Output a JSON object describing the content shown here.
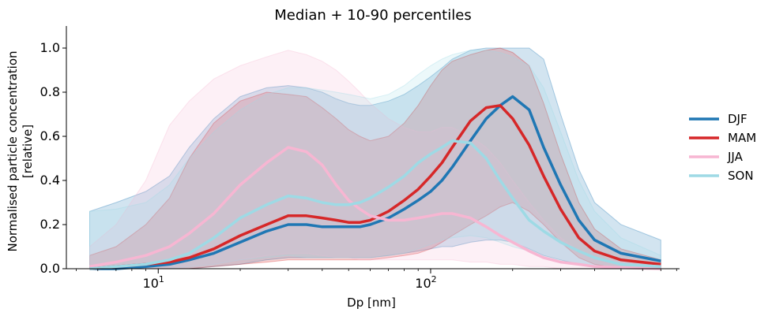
{
  "chart_data": {
    "type": "line",
    "title": "Median + 10-90 percentiles",
    "xlabel": "Dp [nm]",
    "ylabel_line1": "Normalised particle concentration",
    "ylabel_line2": "[relative]",
    "xscale": "log",
    "xlim": [
      4.6,
      820
    ],
    "ylim": [
      0,
      1.1
    ],
    "y_ticks": [
      {
        "value": 0.0,
        "label": "0.0"
      },
      {
        "value": 0.2,
        "label": "0.2"
      },
      {
        "value": 0.4,
        "label": "0.4"
      },
      {
        "value": 0.6,
        "label": "0.6"
      },
      {
        "value": 0.8,
        "label": "0.8"
      },
      {
        "value": 1.0,
        "label": "1.0"
      }
    ],
    "x_major_ticks": [
      {
        "value": 10,
        "base": "10",
        "exp": "1"
      },
      {
        "value": 100,
        "base": "10",
        "exp": "2"
      }
    ],
    "legend_position": "right",
    "series": [
      {
        "name": "DJF",
        "color": "#1f77b4",
        "x": [
          5.6,
          7,
          9,
          11,
          13,
          16,
          20,
          25,
          30,
          35,
          40,
          45,
          50,
          55,
          60,
          70,
          80,
          90,
          100,
          110,
          120,
          140,
          160,
          180,
          200,
          230,
          260,
          300,
          350,
          400,
          500,
          700
        ],
        "median": [
          0.0,
          0.0,
          0.01,
          0.02,
          0.04,
          0.07,
          0.12,
          0.17,
          0.2,
          0.2,
          0.19,
          0.19,
          0.19,
          0.19,
          0.2,
          0.23,
          0.27,
          0.31,
          0.35,
          0.4,
          0.46,
          0.58,
          0.68,
          0.74,
          0.78,
          0.72,
          0.55,
          0.38,
          0.22,
          0.13,
          0.07,
          0.035
        ],
        "p10": [
          0.0,
          0.0,
          0.0,
          0.0,
          0.0,
          0.01,
          0.02,
          0.04,
          0.05,
          0.05,
          0.05,
          0.05,
          0.05,
          0.05,
          0.05,
          0.06,
          0.07,
          0.08,
          0.09,
          0.1,
          0.1,
          0.12,
          0.13,
          0.13,
          0.12,
          0.09,
          0.06,
          0.04,
          0.02,
          0.01,
          0.0,
          0.0
        ],
        "p90": [
          0.26,
          0.3,
          0.35,
          0.42,
          0.55,
          0.68,
          0.78,
          0.82,
          0.83,
          0.82,
          0.8,
          0.77,
          0.75,
          0.74,
          0.74,
          0.76,
          0.79,
          0.83,
          0.87,
          0.91,
          0.95,
          0.99,
          1.0,
          1.0,
          1.0,
          1.0,
          0.95,
          0.7,
          0.45,
          0.3,
          0.2,
          0.13
        ]
      },
      {
        "name": "MAM",
        "color": "#d62728",
        "x": [
          5.6,
          7,
          9,
          11,
          13,
          16,
          20,
          25,
          30,
          35,
          40,
          45,
          50,
          55,
          60,
          70,
          80,
          90,
          100,
          110,
          120,
          140,
          160,
          180,
          200,
          230,
          260,
          300,
          350,
          400,
          500,
          700
        ],
        "median": [
          0.0,
          0.01,
          0.02,
          0.03,
          0.05,
          0.09,
          0.15,
          0.2,
          0.24,
          0.24,
          0.23,
          0.22,
          0.21,
          0.21,
          0.22,
          0.26,
          0.31,
          0.36,
          0.42,
          0.48,
          0.55,
          0.67,
          0.73,
          0.74,
          0.68,
          0.56,
          0.42,
          0.27,
          0.14,
          0.08,
          0.04,
          0.02
        ],
        "p10": [
          0.0,
          0.0,
          0.0,
          0.0,
          0.0,
          0.01,
          0.02,
          0.03,
          0.04,
          0.04,
          0.04,
          0.04,
          0.04,
          0.04,
          0.04,
          0.05,
          0.06,
          0.07,
          0.09,
          0.12,
          0.15,
          0.2,
          0.24,
          0.28,
          0.3,
          0.26,
          0.2,
          0.12,
          0.05,
          0.02,
          0.0,
          0.0
        ],
        "p90": [
          0.06,
          0.1,
          0.2,
          0.32,
          0.5,
          0.66,
          0.76,
          0.8,
          0.79,
          0.78,
          0.73,
          0.68,
          0.63,
          0.6,
          0.58,
          0.6,
          0.66,
          0.74,
          0.83,
          0.9,
          0.94,
          0.97,
          0.99,
          1.0,
          0.98,
          0.92,
          0.75,
          0.52,
          0.3,
          0.18,
          0.09,
          0.04
        ]
      },
      {
        "name": "JJA",
        "color": "#f7b6d2",
        "x": [
          5.6,
          7,
          9,
          11,
          13,
          16,
          20,
          25,
          30,
          35,
          40,
          45,
          50,
          55,
          60,
          70,
          80,
          90,
          100,
          110,
          120,
          140,
          160,
          180,
          200,
          230,
          260,
          300,
          350,
          400,
          500,
          700
        ],
        "median": [
          0.01,
          0.03,
          0.06,
          0.1,
          0.16,
          0.25,
          0.38,
          0.48,
          0.55,
          0.53,
          0.47,
          0.38,
          0.31,
          0.27,
          0.24,
          0.22,
          0.22,
          0.23,
          0.24,
          0.25,
          0.25,
          0.23,
          0.19,
          0.15,
          0.12,
          0.08,
          0.05,
          0.03,
          0.02,
          0.01,
          0.005,
          0.0
        ],
        "p10": [
          0.0,
          0.0,
          0.0,
          0.0,
          0.01,
          0.02,
          0.04,
          0.06,
          0.07,
          0.07,
          0.06,
          0.05,
          0.05,
          0.04,
          0.04,
          0.04,
          0.04,
          0.04,
          0.04,
          0.04,
          0.04,
          0.03,
          0.03,
          0.02,
          0.02,
          0.01,
          0.01,
          0.0,
          0.0,
          0.0,
          0.0,
          0.0
        ],
        "p90": [
          0.1,
          0.2,
          0.4,
          0.65,
          0.76,
          0.86,
          0.92,
          0.96,
          0.99,
          0.97,
          0.94,
          0.9,
          0.85,
          0.8,
          0.75,
          0.68,
          0.64,
          0.62,
          0.62,
          0.64,
          0.64,
          0.6,
          0.55,
          0.48,
          0.4,
          0.3,
          0.22,
          0.14,
          0.08,
          0.05,
          0.03,
          0.02
        ]
      },
      {
        "name": "SON",
        "color": "#9edae5",
        "x": [
          5.6,
          7,
          9,
          11,
          13,
          16,
          20,
          25,
          30,
          35,
          40,
          45,
          50,
          55,
          60,
          70,
          80,
          90,
          100,
          110,
          120,
          140,
          160,
          180,
          200,
          230,
          260,
          300,
          350,
          400,
          500,
          700
        ],
        "median": [
          0.0,
          0.01,
          0.02,
          0.04,
          0.07,
          0.14,
          0.23,
          0.29,
          0.33,
          0.32,
          0.3,
          0.29,
          0.29,
          0.3,
          0.32,
          0.37,
          0.42,
          0.48,
          0.52,
          0.55,
          0.58,
          0.57,
          0.5,
          0.4,
          0.32,
          0.22,
          0.17,
          0.12,
          0.08,
          0.05,
          0.02,
          0.01
        ],
        "p10": [
          0.0,
          0.0,
          0.0,
          0.0,
          0.01,
          0.02,
          0.04,
          0.05,
          0.06,
          0.05,
          0.05,
          0.05,
          0.05,
          0.05,
          0.05,
          0.06,
          0.07,
          0.09,
          0.11,
          0.13,
          0.14,
          0.15,
          0.14,
          0.12,
          0.1,
          0.08,
          0.05,
          0.03,
          0.02,
          0.01,
          0.0,
          0.0
        ],
        "p90": [
          0.26,
          0.27,
          0.3,
          0.38,
          0.5,
          0.62,
          0.72,
          0.79,
          0.82,
          0.82,
          0.81,
          0.8,
          0.79,
          0.78,
          0.77,
          0.79,
          0.83,
          0.88,
          0.92,
          0.95,
          0.97,
          0.99,
          0.99,
          0.98,
          0.96,
          0.92,
          0.82,
          0.62,
          0.4,
          0.26,
          0.14,
          0.06
        ]
      }
    ]
  }
}
